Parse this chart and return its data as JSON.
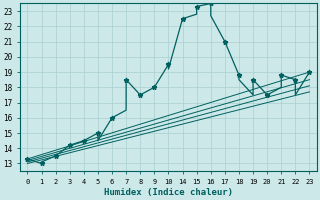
{
  "xlabel": "Humidex (Indice chaleur)",
  "bg_color": "#cce8e8",
  "grid_color": "#aacfcf",
  "line_color": "#006060",
  "xlim": [
    -0.5,
    20.5
  ],
  "ylim": [
    12.5,
    23.5
  ],
  "xtick_positions": [
    0,
    1,
    2,
    3,
    4,
    5,
    6,
    7,
    8,
    9,
    10,
    14,
    15,
    16,
    17,
    18,
    19,
    20,
    21,
    22,
    23
  ],
  "xtick_mapped": [
    0,
    1,
    2,
    3,
    4,
    5,
    6,
    7,
    8,
    9,
    10,
    11,
    12,
    13,
    14,
    15,
    16,
    17,
    18,
    19,
    20
  ],
  "yticks": [
    13,
    14,
    15,
    16,
    17,
    18,
    19,
    20,
    21,
    22,
    23
  ],
  "main_line_x_raw": [
    0,
    1,
    1,
    2,
    3,
    4,
    5,
    5,
    6,
    7,
    7,
    8,
    9,
    10,
    10,
    14,
    15,
    15,
    16,
    16,
    17,
    18,
    18,
    19,
    19,
    20,
    21,
    21,
    22,
    22,
    23
  ],
  "main_line_y": [
    13.3,
    13.0,
    13.1,
    13.5,
    14.2,
    14.5,
    15.0,
    14.5,
    16.0,
    16.5,
    18.5,
    17.5,
    18.0,
    19.5,
    19.2,
    22.5,
    22.8,
    23.3,
    23.5,
    22.7,
    21.0,
    18.8,
    18.5,
    17.5,
    18.5,
    17.5,
    18.0,
    18.8,
    18.5,
    17.5,
    19.0
  ],
  "marker_x_raw": [
    0,
    1,
    2,
    3,
    4,
    5,
    6,
    7,
    8,
    9,
    10,
    14,
    15,
    16,
    17,
    18,
    19,
    20,
    21,
    22,
    23
  ],
  "marker_y": [
    13.3,
    13.0,
    13.5,
    14.2,
    14.5,
    15.0,
    16.0,
    18.5,
    17.5,
    18.0,
    19.5,
    22.5,
    23.3,
    23.5,
    21.0,
    18.8,
    18.5,
    17.5,
    18.8,
    18.5,
    19.0
  ],
  "diag_lines_raw": [
    {
      "x": [
        0,
        23
      ],
      "y": [
        13.3,
        19.0
      ]
    },
    {
      "x": [
        0,
        23
      ],
      "y": [
        13.2,
        18.5
      ]
    },
    {
      "x": [
        0,
        23
      ],
      "y": [
        13.1,
        18.1
      ]
    },
    {
      "x": [
        0,
        23
      ],
      "y": [
        13.0,
        17.7
      ]
    }
  ]
}
